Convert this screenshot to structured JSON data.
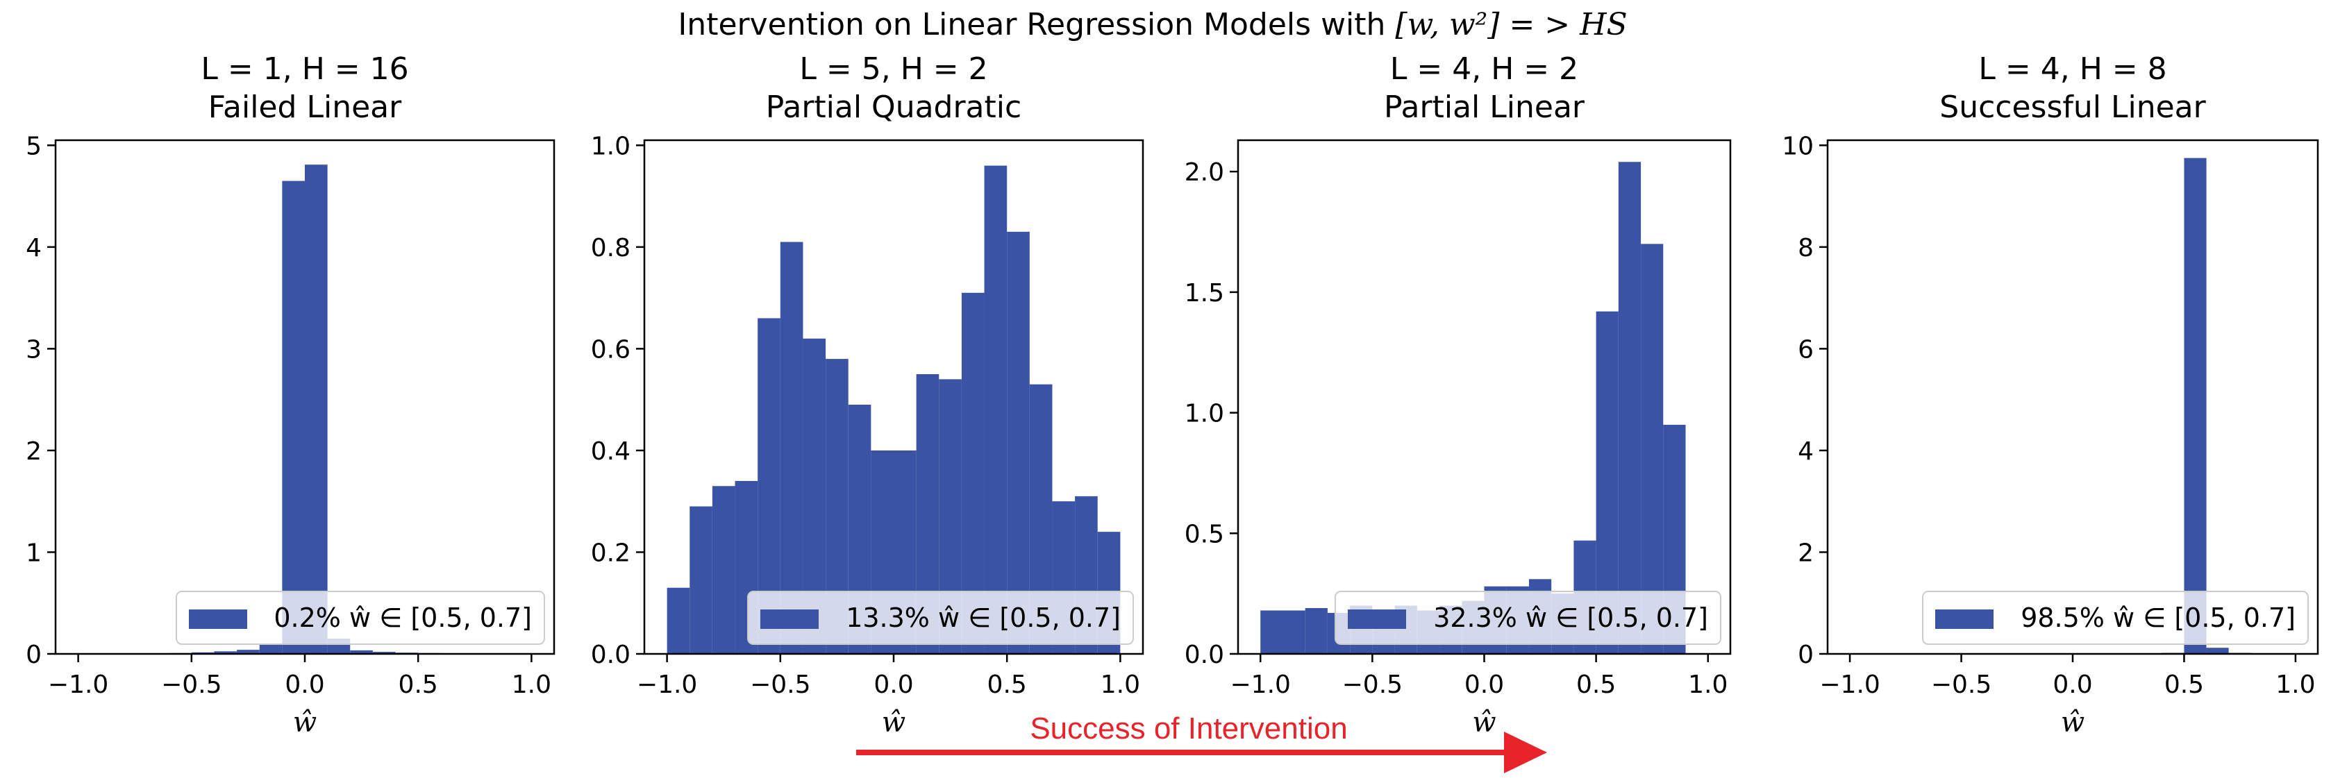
{
  "figure_title_prefix": "Intervention on Linear Regression Models with ",
  "figure_title_math": "[w, w²] = > HS",
  "bar_color": "#3a53a4",
  "arrow_color": "#e8232a",
  "annotation": "Success of Intervention",
  "chart_data": [
    {
      "type": "bar",
      "title_line1": "L = 1, H = 16",
      "title_line2": "Failed Linear",
      "xlabel": "ŵ",
      "xlim": [
        -1.1,
        1.1
      ],
      "ylim": [
        0,
        5.05
      ],
      "xticks": [
        "-1.0",
        "-0.5",
        "0.0",
        "0.5",
        "1.0"
      ],
      "yticks": [
        "0",
        "1",
        "2",
        "3",
        "4",
        "5"
      ],
      "bin_width": 0.1,
      "bins_left": [
        -1.0,
        -0.9,
        -0.8,
        -0.7,
        -0.6,
        -0.5,
        -0.4,
        -0.3,
        -0.2,
        -0.1,
        0.0,
        0.1,
        0.2,
        0.3,
        0.4,
        0.5,
        0.6,
        0.7,
        0.8,
        0.9
      ],
      "values": [
        0.002,
        0.002,
        0.003,
        0.004,
        0.008,
        0.015,
        0.025,
        0.04,
        0.1,
        4.65,
        4.81,
        0.15,
        0.035,
        0.02,
        0.012,
        0.008,
        0.005,
        0.003,
        0.002,
        0.001
      ],
      "legend": "0.2% ŵ ∈ [0.5, 0.7]",
      "legend_loc": "lower-right"
    },
    {
      "type": "bar",
      "title_line1": "L = 5, H = 2",
      "title_line2": "Partial Quadratic",
      "xlabel": "ŵ",
      "xlim": [
        -1.1,
        1.1
      ],
      "ylim": [
        0,
        1.01
      ],
      "xticks": [
        "-1.0",
        "-0.5",
        "0.0",
        "0.5",
        "1.0"
      ],
      "yticks": [
        "0.0",
        "0.2",
        "0.4",
        "0.6",
        "0.8",
        "1.0"
      ],
      "bin_width": 0.1,
      "bins_left": [
        -1.0,
        -0.9,
        -0.8,
        -0.7,
        -0.6,
        -0.5,
        -0.4,
        -0.3,
        -0.2,
        -0.1,
        0.0,
        0.1,
        0.2,
        0.3,
        0.4,
        0.5,
        0.6,
        0.7,
        0.8,
        0.9
      ],
      "values": [
        0.13,
        0.29,
        0.33,
        0.34,
        0.66,
        0.81,
        0.62,
        0.58,
        0.49,
        0.4,
        0.4,
        0.55,
        0.54,
        0.71,
        0.96,
        0.83,
        0.53,
        0.3,
        0.31,
        0.24
      ],
      "legend": "13.3% ŵ ∈ [0.5, 0.7]",
      "legend_loc": "lower-right"
    },
    {
      "type": "bar",
      "title_line1": "L = 4, H = 2",
      "title_line2": "Partial Linear",
      "xlabel": "ŵ",
      "xlim": [
        -1.1,
        1.1
      ],
      "ylim": [
        0,
        2.13
      ],
      "xticks": [
        "-1.0",
        "-0.5",
        "0.0",
        "0.5",
        "1.0"
      ],
      "yticks": [
        "0.0",
        "0.5",
        "1.0",
        "1.5",
        "2.0"
      ],
      "bin_width": 0.1,
      "bins_left": [
        -1.0,
        -0.8,
        -0.7,
        -0.6,
        -0.5,
        -0.4,
        -0.3,
        -0.2,
        -0.1,
        0.0,
        0.1,
        0.2,
        0.3,
        0.4,
        0.5,
        0.6,
        0.7,
        0.8
      ],
      "bin_widths": [
        0.2,
        0.1,
        0.1,
        0.1,
        0.1,
        0.1,
        0.1,
        0.1,
        0.1,
        0.1,
        0.1,
        0.1,
        0.1,
        0.1,
        0.1,
        0.1,
        0.1,
        0.1
      ],
      "values": [
        0.18,
        0.19,
        0.17,
        0.2,
        0.18,
        0.2,
        0.18,
        0.2,
        0.22,
        0.28,
        0.28,
        0.31,
        0.25,
        0.47,
        1.42,
        2.04,
        1.7,
        0.95
      ],
      "legend": "32.3% ŵ ∈ [0.5, 0.7]",
      "legend_loc": "lower-right"
    },
    {
      "type": "bar",
      "title_line1": "L = 4, H = 8",
      "title_line2": "Successful Linear",
      "xlabel": "ŵ",
      "xlim": [
        -1.1,
        1.1
      ],
      "ylim": [
        0,
        10.1
      ],
      "xticks": [
        "-1.0",
        "-0.5",
        "0.0",
        "0.5",
        "1.0"
      ],
      "yticks": [
        "0",
        "2",
        "4",
        "6",
        "8",
        "10"
      ],
      "bin_width": 0.1,
      "bins_left": [
        0.4,
        0.5,
        0.6,
        0.7
      ],
      "values": [
        0.02,
        9.75,
        0.12,
        0.02
      ],
      "legend": "98.5% ŵ ∈ [0.5, 0.7]",
      "legend_loc": "lower-right"
    }
  ]
}
